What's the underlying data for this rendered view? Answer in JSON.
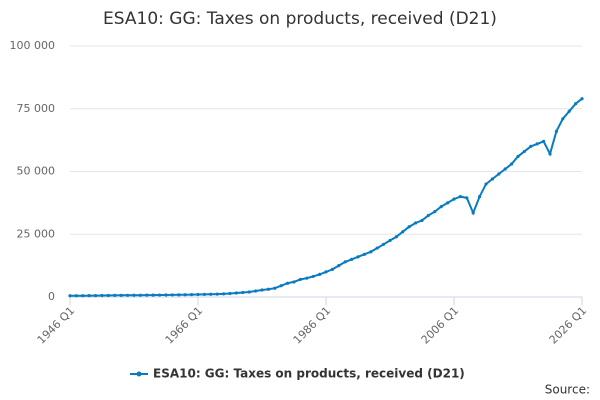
{
  "chart_data": {
    "type": "line",
    "title": "ESA10: GG: Taxes on products, received (D21)",
    "source": "Source:",
    "categories": [
      "1946 Q1",
      null,
      null,
      null,
      null,
      null,
      null,
      null,
      null,
      null,
      null,
      null,
      null,
      null,
      null,
      null,
      null,
      null,
      null,
      null,
      "1966 Q1",
      null,
      null,
      null,
      null,
      null,
      null,
      null,
      null,
      null,
      null,
      null,
      null,
      null,
      null,
      null,
      null,
      null,
      null,
      null,
      "1986 Q1",
      null,
      null,
      null,
      null,
      null,
      null,
      null,
      null,
      null,
      null,
      null,
      null,
      null,
      null,
      null,
      null,
      null,
      null,
      null,
      "2006 Q1",
      null,
      null,
      null,
      null,
      null,
      null,
      null,
      null,
      null,
      null,
      null,
      null,
      null,
      null,
      null,
      null,
      null,
      null,
      null,
      "2026 Q1"
    ],
    "series": [
      {
        "name": "ESA10: GG: Taxes on products, received (D21)",
        "color": "#0a7bbf",
        "values": [
          500,
          510,
          520,
          540,
          560,
          600,
          620,
          640,
          660,
          680,
          700,
          720,
          740,
          760,
          780,
          800,
          830,
          860,
          900,
          950,
          1000,
          1050,
          1100,
          1150,
          1250,
          1400,
          1600,
          1800,
          2000,
          2400,
          2800,
          3100,
          3500,
          4500,
          5500,
          6000,
          7000,
          7500,
          8200,
          9000,
          10000,
          11000,
          12500,
          14000,
          15000,
          16000,
          17000,
          18000,
          19500,
          21000,
          22500,
          24000,
          26000,
          28000,
          29500,
          30500,
          32500,
          34000,
          36000,
          37500,
          39000,
          40000,
          39500,
          33500,
          40000,
          45000,
          47000,
          49000,
          51000,
          53000,
          56000,
          58000,
          60000,
          61000,
          62000,
          57000,
          66000,
          71000,
          74000,
          77000,
          79000
        ]
      }
    ],
    "ylim": [
      0,
      100000
    ],
    "yticks": [
      0,
      {
        "value": 25000,
        "label": "25 000"
      },
      {
        "value": 50000,
        "label": "50 000"
      },
      {
        "value": 75000,
        "label": "75 000"
      },
      {
        "value": 100000,
        "label": "100 000"
      }
    ],
    "grid": true
  }
}
